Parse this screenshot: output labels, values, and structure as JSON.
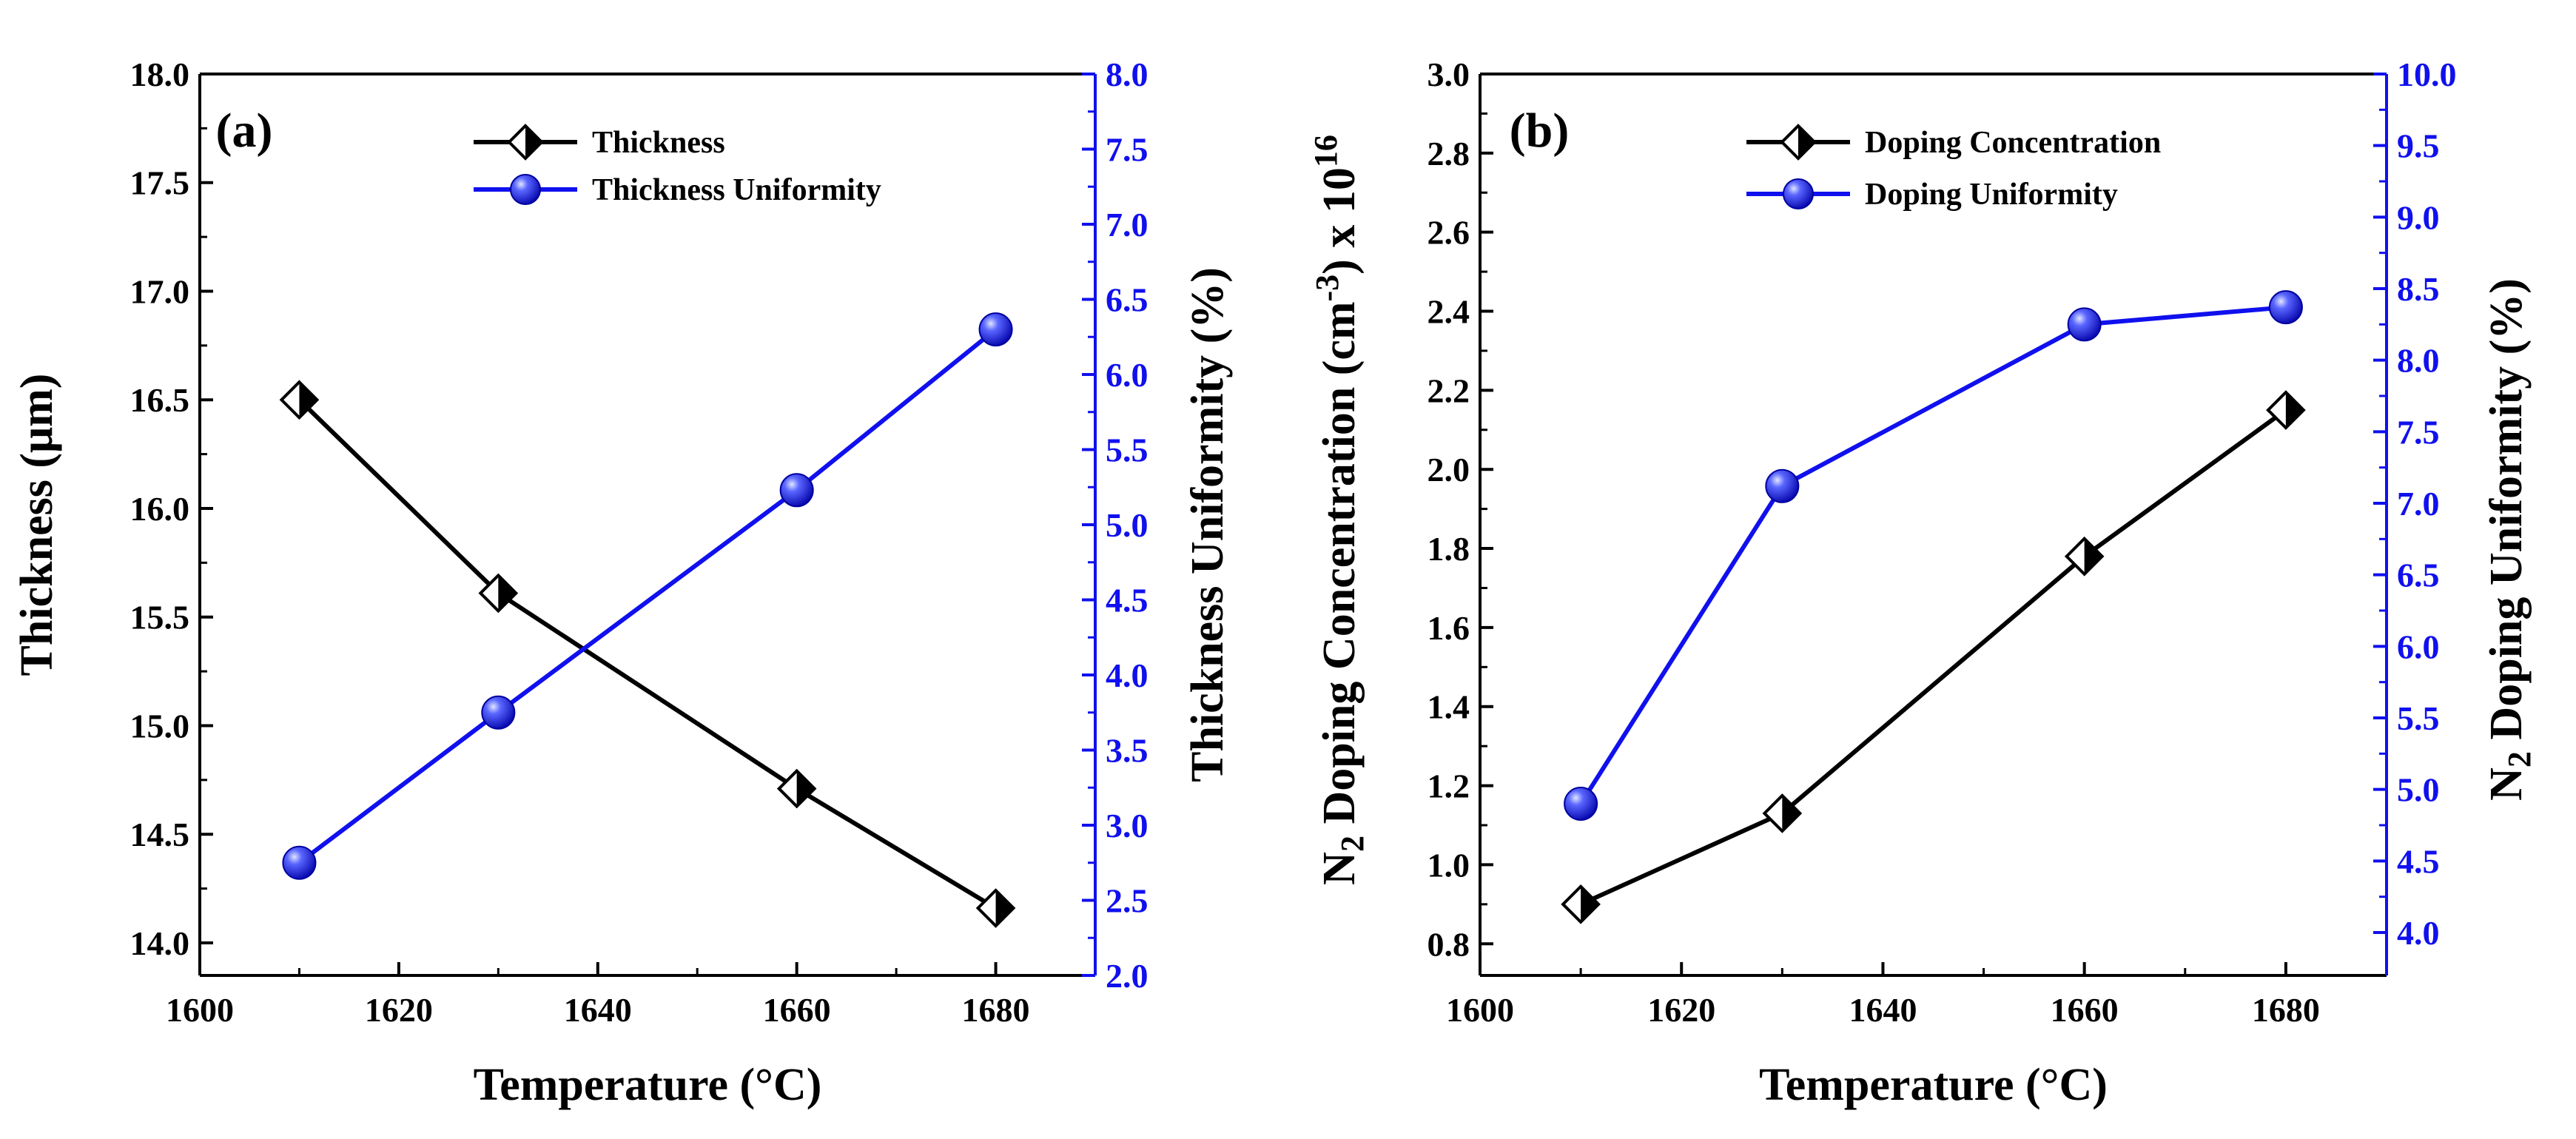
{
  "colors": {
    "black": "#000000",
    "blue": "#1010ee",
    "axis": "#000000"
  },
  "chart_data": [
    {
      "type": "line",
      "panel_label": "(a)",
      "title": "",
      "xlabel": "Temperature (°C)",
      "ylabel": "Thickness (μm)",
      "y2label": "Thickness Uniformity (%)",
      "xlim": [
        1600,
        1690
      ],
      "ylim": [
        13.85,
        18.0
      ],
      "y2lim": [
        2.0,
        8.0
      ],
      "xticks": [
        "1600",
        "1620",
        "1640",
        "1660",
        "1680"
      ],
      "yticks": [
        "14.0",
        "14.5",
        "15.0",
        "15.5",
        "16.0",
        "16.5",
        "17.0",
        "17.5",
        "18.0"
      ],
      "y2ticks": [
        "2.0",
        "2.5",
        "3.0",
        "3.5",
        "4.0",
        "4.5",
        "5.0",
        "5.5",
        "6.0",
        "6.5",
        "7.0",
        "7.5",
        "8.0"
      ],
      "x": [
        1610,
        1630,
        1660,
        1680
      ],
      "series": [
        {
          "name": "Thickness",
          "axis": "left",
          "marker": "half-diamond",
          "color": "#000000",
          "values": [
            16.5,
            15.61,
            14.71,
            14.16
          ]
        },
        {
          "name": "Thickness Uniformity",
          "axis": "right",
          "marker": "sphere",
          "color": "#1010ee",
          "values": [
            2.75,
            3.75,
            5.23,
            6.3
          ]
        }
      ],
      "legend": "top-right"
    },
    {
      "type": "line",
      "panel_label": "(b)",
      "title": "",
      "xlabel": "Temperature (°C)",
      "ylabel": {
        "pre": "N",
        "sub1": "2",
        "mid": " Doping Concentration (cm",
        "sup1": "-3",
        "mid2": ") x 10",
        "sup2": "16"
      },
      "y2label": {
        "pre": "N",
        "sub1": "2",
        "post": " Doping Uniformity (%)"
      },
      "xlim": [
        1600,
        1690
      ],
      "ylim": [
        0.72,
        3.0
      ],
      "y2lim": [
        3.7,
        10.0
      ],
      "xticks": [
        "1600",
        "1620",
        "1640",
        "1660",
        "1680"
      ],
      "yticks": [
        "0.8",
        "1.0",
        "1.2",
        "1.4",
        "1.6",
        "1.8",
        "2.0",
        "2.2",
        "2.4",
        "2.6",
        "2.8",
        "3.0"
      ],
      "y2ticks": [
        "4.0",
        "4.5",
        "5.0",
        "5.5",
        "6.0",
        "6.5",
        "7.0",
        "7.5",
        "8.0",
        "8.5",
        "9.0",
        "9.5",
        "10.0"
      ],
      "x": [
        1610,
        1630,
        1660,
        1680
      ],
      "series": [
        {
          "name": "Doping Concentration",
          "axis": "left",
          "marker": "half-diamond",
          "color": "#000000",
          "values": [
            0.9,
            1.13,
            1.78,
            2.15
          ]
        },
        {
          "name": "Doping Uniformity",
          "axis": "right",
          "marker": "sphere",
          "color": "#1010ee",
          "values": [
            4.9,
            7.12,
            8.25,
            8.37
          ]
        }
      ],
      "legend": "top-right"
    }
  ]
}
